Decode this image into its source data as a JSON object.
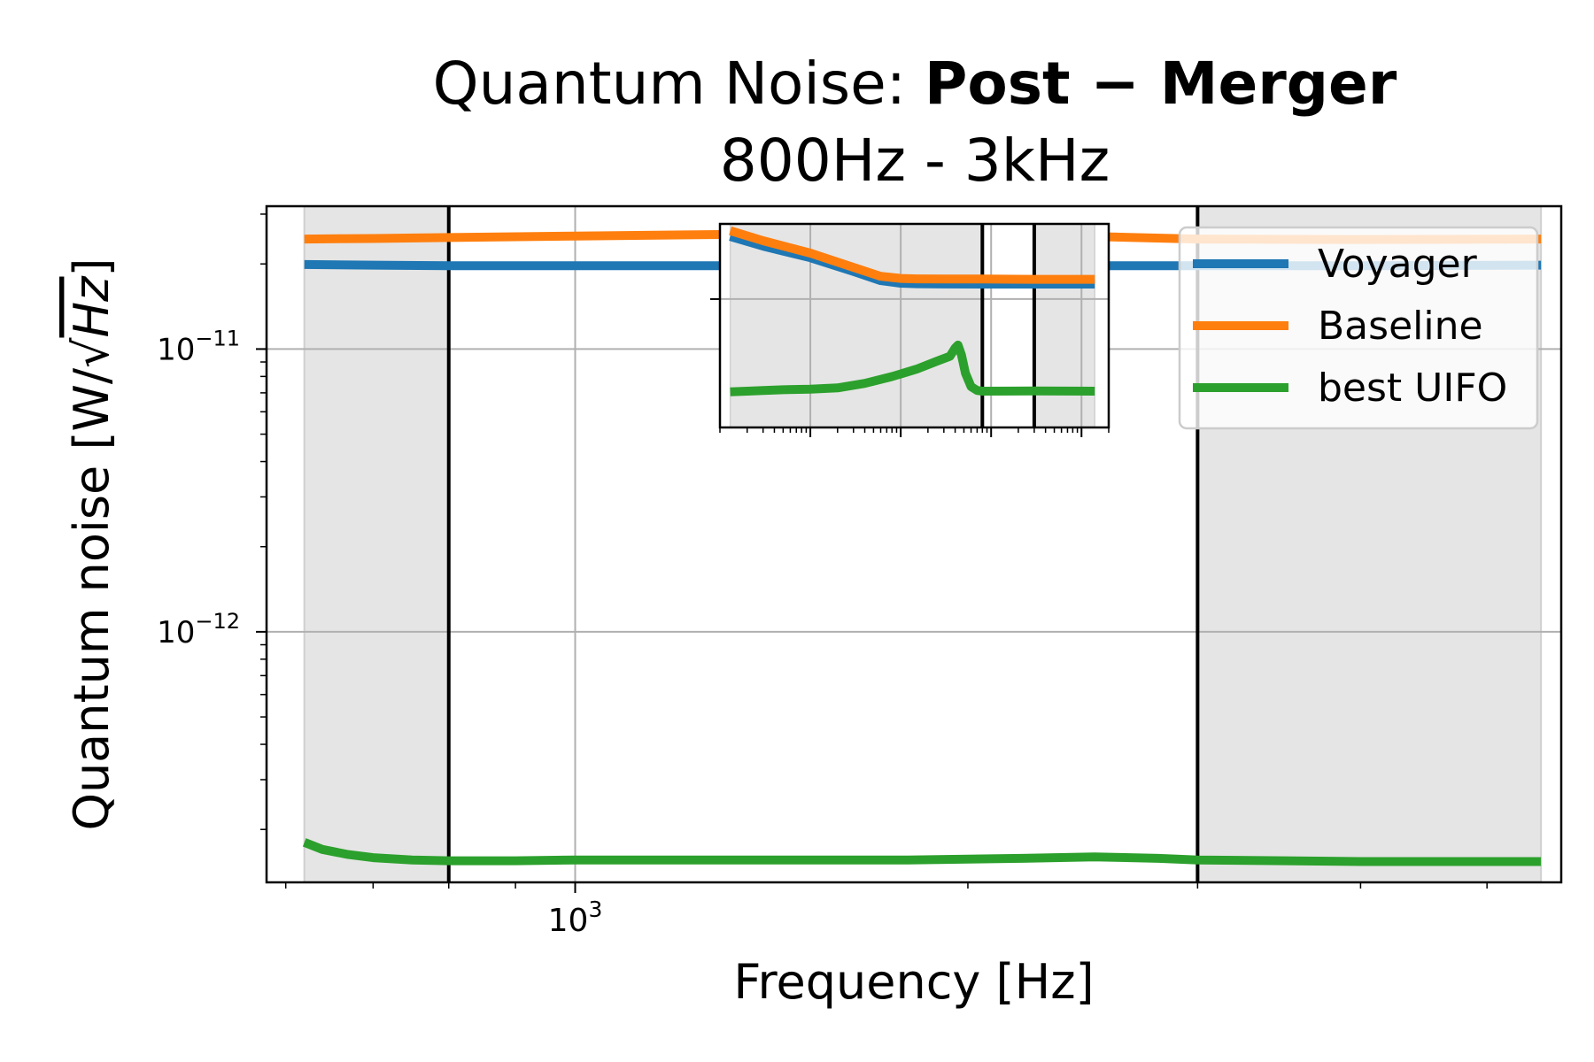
{
  "chart_data": {
    "type": "line",
    "title_prefix": "Quantum Noise: ",
    "title_bold": "Post − Merger",
    "subtitle": "800Hz - 3kHz",
    "xlabel": "Frequency [Hz]",
    "ylabel_prefix": "Quantum noise [W/",
    "ylabel_sqrt": "Hz",
    "ylabel_suffix": "]",
    "x_scale": "log",
    "y_scale": "log",
    "xlim": [
      580,
      5700
    ],
    "ylim": [
      1.3e-13,
      3.2e-11
    ],
    "x_ticks": [
      {
        "value": 1000,
        "base": "10",
        "exp": "3"
      }
    ],
    "y_ticks": [
      {
        "value": 1e-12,
        "base": "10",
        "exp": "−12"
      },
      {
        "value": 1e-11,
        "base": "10",
        "exp": "−11"
      }
    ],
    "grid": true,
    "shaded_regions": [
      [
        620,
        800
      ],
      [
        3000,
        5500
      ]
    ],
    "vlines": [
      800,
      3000
    ],
    "legend_position": "upper-right",
    "series": [
      {
        "name": "Voyager",
        "color": "#1f77b4",
        "x": [
          620,
          700,
          800,
          1000,
          1500,
          2000,
          2500,
          3000,
          4000,
          5500
        ],
        "y": [
          1.99e-11,
          1.98e-11,
          1.97e-11,
          1.97e-11,
          1.97e-11,
          1.97e-11,
          1.97e-11,
          1.97e-11,
          1.97e-11,
          1.98e-11
        ]
      },
      {
        "name": "Baseline",
        "color": "#ff7f0e",
        "x": [
          620,
          700,
          800,
          1000,
          1500,
          2000,
          2500,
          3000,
          4000,
          5500
        ],
        "y": [
          2.45e-11,
          2.46e-11,
          2.48e-11,
          2.51e-11,
          2.56e-11,
          2.56e-11,
          2.5e-11,
          2.45e-11,
          2.44e-11,
          2.45e-11
        ]
      },
      {
        "name": "best UIFO",
        "color": "#2ca02c",
        "x": [
          620,
          640,
          670,
          700,
          750,
          800,
          900,
          1000,
          1200,
          1500,
          1800,
          2200,
          2500,
          2800,
          3000,
          3500,
          4000,
          5500
        ],
        "y": [
          1.8e-13,
          1.7e-13,
          1.63e-13,
          1.59e-13,
          1.56e-13,
          1.55e-13,
          1.55e-13,
          1.56e-13,
          1.56e-13,
          1.56e-13,
          1.56e-13,
          1.58e-13,
          1.6e-13,
          1.58e-13,
          1.56e-13,
          1.55e-13,
          1.54e-13,
          1.54e-13
        ]
      }
    ],
    "inset": {
      "x_scale": "log",
      "y_scale": "log",
      "xlim": [
        1,
        20000
      ],
      "ylim": [
        3e-14,
        3e-10
      ],
      "x_ticks": [
        10,
        100,
        1000,
        10000
      ],
      "y_ticks": [
        1e-11
      ],
      "grid": true,
      "shaded_regions": [
        [
          1.3,
          800
        ],
        [
          3000,
          14000
        ]
      ],
      "vlines": [
        800,
        3000
      ],
      "series": [
        {
          "name": "Voyager",
          "color": "#1f77b4",
          "x": [
            1.3,
            3,
            10,
            30,
            60,
            100,
            150,
            300,
            800,
            3000,
            14000
          ],
          "y": [
            1.7e-10,
            1.1e-10,
            6.5e-11,
            3.5e-11,
            2.3e-11,
            2.05e-11,
            2e-11,
            1.98e-11,
            1.97e-11,
            1.97e-11,
            1.97e-11
          ]
        },
        {
          "name": "Baseline",
          "color": "#ff7f0e",
          "x": [
            1.3,
            3,
            10,
            30,
            60,
            100,
            150,
            300,
            800,
            3000,
            14000
          ],
          "y": [
            2.2e-10,
            1.4e-10,
            8e-11,
            4.2e-11,
            2.8e-11,
            2.55e-11,
            2.5e-11,
            2.48e-11,
            2.48e-11,
            2.45e-11,
            2.45e-11
          ]
        },
        {
          "name": "best UIFO",
          "color": "#2ca02c",
          "x": [
            1.3,
            2,
            3,
            5,
            10,
            20,
            40,
            80,
            150,
            250,
            350,
            400,
            430,
            470,
            520,
            600,
            700,
            800,
            3000,
            14000
          ],
          "y": [
            1.5e-13,
            1.55e-13,
            1.6e-13,
            1.65e-13,
            1.7e-13,
            1.8e-13,
            2.2e-13,
            3e-13,
            4.2e-13,
            6e-13,
            7.5e-13,
            1.1e-12,
            1.25e-12,
            8e-13,
            3.5e-13,
            1.9e-13,
            1.6e-13,
            1.55e-13,
            1.56e-13,
            1.55e-13
          ]
        }
      ]
    }
  }
}
